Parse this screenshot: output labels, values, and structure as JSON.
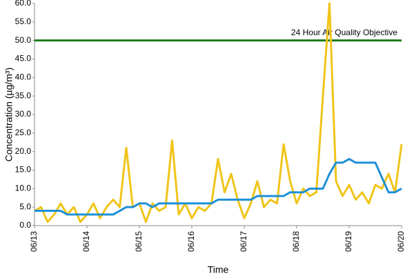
{
  "chart_data": {
    "type": "line",
    "y_label": "Concentration (µg/m³)",
    "x_label": "Time",
    "x": [
      0,
      0.125,
      0.25,
      0.375,
      0.5,
      0.625,
      0.75,
      0.875,
      1,
      1.125,
      1.25,
      1.375,
      1.5,
      1.625,
      1.75,
      1.875,
      2,
      2.125,
      2.25,
      2.375,
      2.5,
      2.625,
      2.75,
      2.875,
      3,
      3.125,
      3.25,
      3.375,
      3.5,
      3.625,
      3.75,
      3.875,
      4,
      4.125,
      4.25,
      4.375,
      4.5,
      4.625,
      4.75,
      4.875,
      5,
      5.125,
      5.25,
      5.375,
      5.5,
      5.625,
      5.75,
      5.875,
      6,
      6.125,
      6.25,
      6.375,
      6.5,
      6.625,
      6.75,
      6.875,
      7
    ],
    "series": [
      {
        "color": "#f0c419",
        "values": [
          4,
          5,
          1,
          3,
          6,
          3,
          5,
          1,
          3,
          6,
          2,
          5,
          7,
          5,
          21,
          5,
          6,
          1,
          6,
          4,
          5,
          23,
          3,
          6,
          2,
          5,
          4,
          6,
          18,
          9,
          14,
          7,
          2,
          6,
          12,
          5,
          7,
          6,
          22,
          12,
          6,
          10,
          8,
          9,
          35,
          60,
          12,
          8,
          11,
          7,
          9,
          6,
          11,
          10,
          14,
          9,
          22
        ]
      },
      {
        "color": "#1e90d8",
        "values": [
          4,
          4,
          4,
          4,
          4,
          3,
          3,
          3,
          3,
          3,
          3,
          3,
          3,
          4,
          5,
          5,
          6,
          6,
          5,
          6,
          6,
          6,
          6,
          6,
          6,
          6,
          6,
          6,
          7,
          7,
          7,
          7,
          7,
          7,
          8,
          8,
          8,
          8,
          8,
          9,
          9,
          9,
          10,
          10,
          10,
          14,
          17,
          17,
          18,
          17,
          17,
          17,
          17,
          13,
          9,
          9,
          10
        ]
      }
    ],
    "reference_line": {
      "value": 50,
      "label": "24 Hour Air Quality Objective",
      "color": "#1a7a1a"
    },
    "xlim": [
      0,
      7
    ],
    "xticks": [
      {
        "value": 0,
        "label": "06/13"
      },
      {
        "value": 1,
        "label": "06/14"
      },
      {
        "value": 2,
        "label": "06/15"
      },
      {
        "value": 3,
        "label": "06/16"
      },
      {
        "value": 4,
        "label": "06/17"
      },
      {
        "value": 5,
        "label": "06/18"
      },
      {
        "value": 6,
        "label": "06/19"
      },
      {
        "value": 7,
        "label": "06/20"
      }
    ],
    "ylim": [
      0,
      60
    ],
    "yticks": [
      {
        "value": 0,
        "label": "0.0"
      },
      {
        "value": 5,
        "label": "5.0"
      },
      {
        "value": 10,
        "label": "10.0"
      },
      {
        "value": 15,
        "label": "15.0"
      },
      {
        "value": 20,
        "label": "20.0"
      },
      {
        "value": 25,
        "label": "25.0"
      },
      {
        "value": 30,
        "label": "30.0"
      },
      {
        "value": 35,
        "label": "35.0"
      },
      {
        "value": 40,
        "label": "40.0"
      },
      {
        "value": 45,
        "label": "45.0"
      },
      {
        "value": 50,
        "label": "50.0"
      },
      {
        "value": 55,
        "label": "55.0"
      },
      {
        "value": 60,
        "label": "60.0"
      }
    ]
  }
}
